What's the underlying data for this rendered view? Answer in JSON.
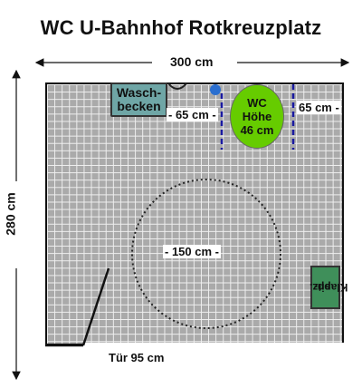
{
  "title": "WC U-Bahnhof Rotkreuzplatz",
  "dimensions": {
    "width": "300 cm",
    "depth": "280 cm",
    "door": "Tür 95 cm",
    "sink_to_wc": "- 65 cm -",
    "wc_to_wall": "65 cm -",
    "turning_circle": "- 150 cm -"
  },
  "fixtures": {
    "sink_line1": "Wasch-",
    "sink_line2": "becken",
    "wc_line1": "WC",
    "wc_line2": "Höhe",
    "wc_line3": "46 cm",
    "folding_seat_line1": "Klapp-",
    "folding_seat_line2": "sitz."
  },
  "colors": {
    "sink": "#6fa6a6",
    "wc": "#66cc00",
    "folding_seat": "#3f8f5a",
    "grab_bars": "#1a1aa0",
    "flush_button": "#2b6fd0",
    "floor_tiles": "#aaaaaa"
  }
}
